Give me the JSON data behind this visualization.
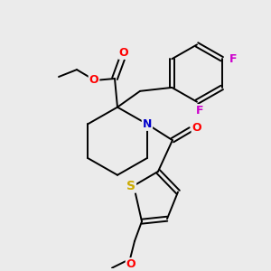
{
  "background_color": "#ebebeb",
  "bond_color": "#000000",
  "atom_colors": {
    "O": "#ff0000",
    "N": "#0000cc",
    "S": "#ccaa00",
    "F": "#cc00cc",
    "C": "#000000"
  },
  "figsize": [
    3.0,
    3.0
  ],
  "dpi": 100,
  "lw": 1.4,
  "fs": 8.5
}
